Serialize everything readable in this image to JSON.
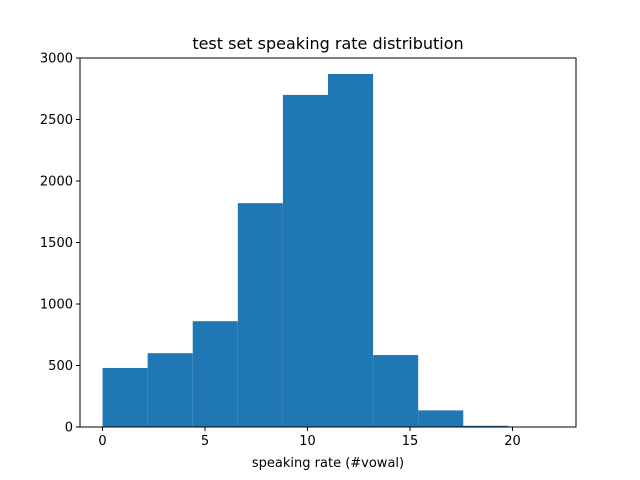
{
  "chart_data": {
    "type": "bar",
    "subtype": "histogram",
    "title": "test set speaking rate distribution",
    "xlabel": "speaking rate (#vowal)",
    "ylabel": "",
    "bin_edges": [
      0,
      2.2,
      4.4,
      6.6,
      8.8,
      11.0,
      13.2,
      15.4,
      17.6,
      19.8,
      22.0
    ],
    "values": [
      480,
      600,
      860,
      1820,
      2700,
      2870,
      585,
      135,
      10,
      0
    ],
    "xlim": [
      -1.1,
      23.1
    ],
    "ylim": [
      0,
      3000
    ],
    "xticks": [
      0,
      5,
      10,
      15,
      20
    ],
    "xtick_labels": [
      "0",
      "5",
      "10",
      "15",
      "20"
    ],
    "yticks": [
      0,
      500,
      1000,
      1500,
      2000,
      2500,
      3000
    ],
    "ytick_labels": [
      "0",
      "500",
      "1000",
      "1500",
      "2000",
      "2500",
      "3000"
    ],
    "bar_color": "#1f77b4",
    "grid": false,
    "legend": "none"
  }
}
